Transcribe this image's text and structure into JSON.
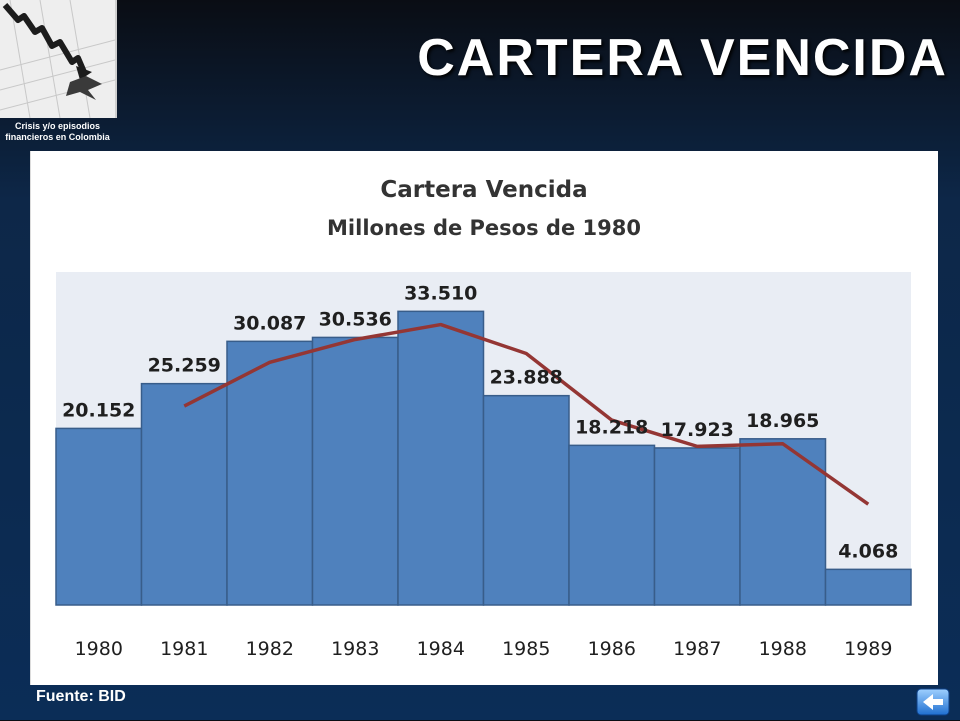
{
  "header": {
    "title": "CARTERA VENCIDA",
    "logo_caption": "Crisis y/o episodios financieros en Colombia"
  },
  "footer": {
    "source": "Fuente: BID"
  },
  "colors": {
    "bar_fill": "#4f81bd",
    "bar_stroke": "#385d8a",
    "trend_line": "#943634",
    "plot_bg": "#e9edf4"
  },
  "chart_data": {
    "type": "bar",
    "title": "Cartera Vencida",
    "subtitle": "Millones de Pesos de 1980",
    "categories": [
      "1980",
      "1981",
      "1982",
      "1983",
      "1984",
      "1985",
      "1986",
      "1987",
      "1988",
      "1989"
    ],
    "values": [
      20.152,
      25.259,
      30.087,
      30.536,
      33.51,
      23.888,
      18.218,
      17.923,
      18.965,
      4.068
    ],
    "value_labels": [
      "20.152",
      "25.259",
      "30.087",
      "30.536",
      "33.510",
      "23.888",
      "18.218",
      "17.923",
      "18.965",
      "4.068"
    ],
    "trend_line": {
      "x": [
        "1981",
        "1982",
        "1983",
        "1984",
        "1985",
        "1986",
        "1987",
        "1988",
        "1989"
      ],
      "values": [
        22.7,
        27.7,
        30.3,
        32.0,
        28.7,
        21.1,
        18.1,
        18.4,
        11.5
      ]
    },
    "ylim": [
      0,
      38
    ],
    "grid": false,
    "legend": "none",
    "xlabel": "",
    "ylabel": ""
  },
  "icons": {
    "back": "back-arrow-icon"
  }
}
